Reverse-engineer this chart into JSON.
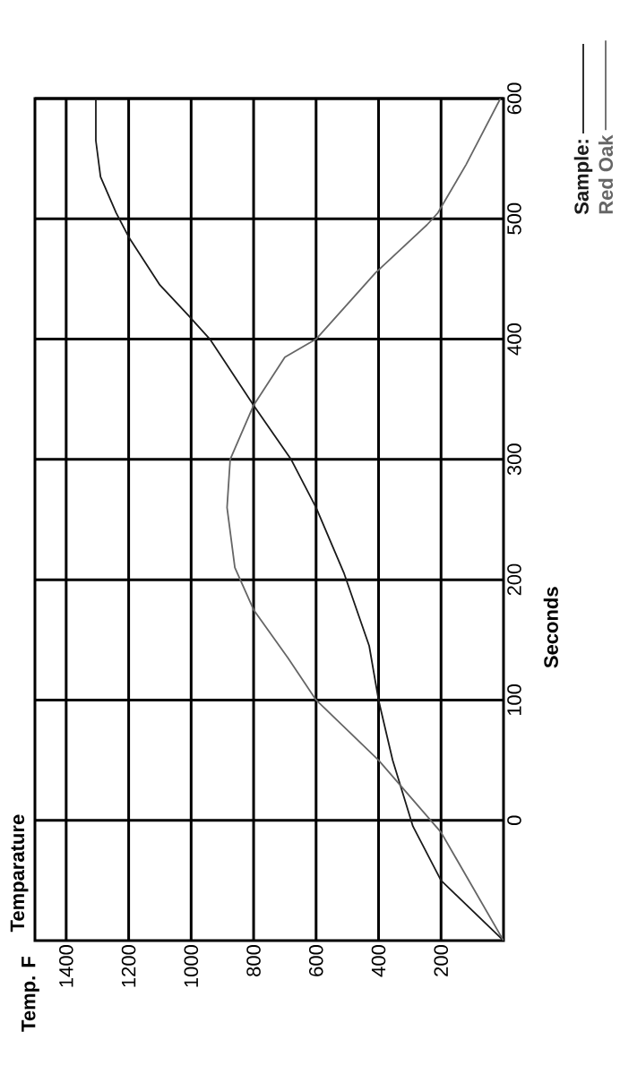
{
  "chart_data": {
    "type": "line",
    "title": "Temparature",
    "annotations": [
      "Temp. F"
    ],
    "ylabel": "Seconds",
    "xlim": [
      1500,
      0
    ],
    "ylim": [
      -100,
      600
    ],
    "xticks": [
      1400,
      1200,
      1000,
      800,
      600,
      400,
      200
    ],
    "yticks": [
      0,
      100,
      200,
      300,
      400,
      500,
      600
    ],
    "grid": true,
    "legend": "top right",
    "line_style": "solid",
    "series": [
      {
        "name": "Sample:",
        "color": "#1a1a1a",
        "x": [
          0,
          200,
          290,
          355,
          400,
          430,
          510,
          600,
          680,
          800,
          940,
          1010,
          1100,
          1200,
          1240,
          1290,
          1305,
          1305
        ],
        "values": [
          -100,
          -50,
          -5,
          50,
          100,
          145,
          205,
          260,
          300,
          345,
          400,
          420,
          445,
          485,
          505,
          535,
          565,
          600
        ]
      },
      {
        "name": "Red Oak",
        "color": "#666666",
        "x": [
          0,
          200,
          400,
          600,
          690,
          800,
          860,
          885,
          875,
          800,
          700,
          600,
          410,
          245,
          210,
          120,
          10
        ],
        "values": [
          -100,
          -10,
          50,
          100,
          135,
          175,
          210,
          260,
          300,
          345,
          385,
          400,
          455,
          495,
          505,
          545,
          600
        ]
      }
    ]
  }
}
